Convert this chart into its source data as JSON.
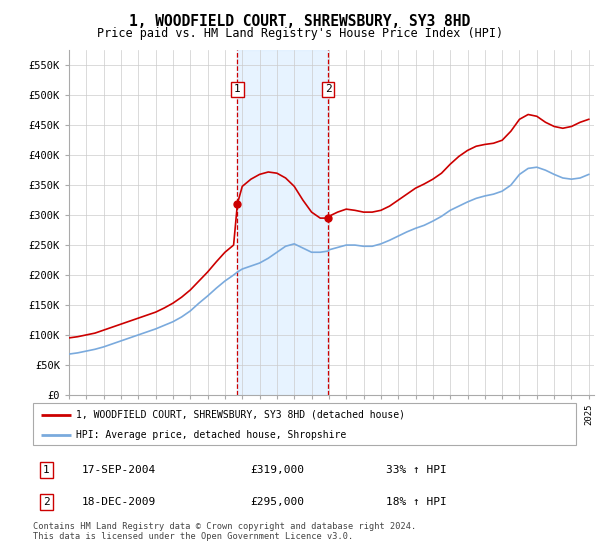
{
  "title": "1, WOODFIELD COURT, SHREWSBURY, SY3 8HD",
  "subtitle": "Price paid vs. HM Land Registry's House Price Index (HPI)",
  "ylim": [
    0,
    575000
  ],
  "yticks": [
    0,
    50000,
    100000,
    150000,
    200000,
    250000,
    300000,
    350000,
    400000,
    450000,
    500000,
    550000
  ],
  "ytick_labels": [
    "£0",
    "£50K",
    "£100K",
    "£150K",
    "£200K",
    "£250K",
    "£300K",
    "£350K",
    "£400K",
    "£450K",
    "£500K",
    "£550K"
  ],
  "red_line_color": "#cc0000",
  "blue_line_color": "#7aaadd",
  "grid_color": "#cccccc",
  "shade_color": "#ddeeff",
  "purchase1_date": 2004.72,
  "purchase1_price": 319000,
  "purchase2_date": 2009.96,
  "purchase2_price": 295000,
  "legend_entry1": "1, WOODFIELD COURT, SHREWSBURY, SY3 8HD (detached house)",
  "legend_entry2": "HPI: Average price, detached house, Shropshire",
  "table_row1_date": "17-SEP-2004",
  "table_row1_price": "£319,000",
  "table_row1_hpi": "33% ↑ HPI",
  "table_row2_date": "18-DEC-2009",
  "table_row2_price": "£295,000",
  "table_row2_hpi": "18% ↑ HPI",
  "footer": "Contains HM Land Registry data © Crown copyright and database right 2024.\nThis data is licensed under the Open Government Licence v3.0.",
  "hpi_x": [
    1995.0,
    1995.5,
    1996.0,
    1996.5,
    1997.0,
    1997.5,
    1998.0,
    1998.5,
    1999.0,
    1999.5,
    2000.0,
    2000.5,
    2001.0,
    2001.5,
    2002.0,
    2002.5,
    2003.0,
    2003.5,
    2004.0,
    2004.5,
    2004.72,
    2005.0,
    2005.5,
    2006.0,
    2006.5,
    2007.0,
    2007.5,
    2008.0,
    2008.5,
    2009.0,
    2009.5,
    2009.96,
    2010.0,
    2010.5,
    2011.0,
    2011.5,
    2012.0,
    2012.5,
    2013.0,
    2013.5,
    2014.0,
    2014.5,
    2015.0,
    2015.5,
    2016.0,
    2016.5,
    2017.0,
    2017.5,
    2018.0,
    2018.5,
    2019.0,
    2019.5,
    2020.0,
    2020.5,
    2021.0,
    2021.5,
    2022.0,
    2022.5,
    2023.0,
    2023.5,
    2024.0,
    2024.5,
    2025.0
  ],
  "hpi_y": [
    68000,
    70000,
    73000,
    76000,
    80000,
    85000,
    90000,
    95000,
    100000,
    105000,
    110000,
    116000,
    122000,
    130000,
    140000,
    153000,
    165000,
    178000,
    190000,
    200000,
    205000,
    210000,
    215000,
    220000,
    228000,
    238000,
    248000,
    252000,
    245000,
    238000,
    238000,
    240000,
    242000,
    246000,
    250000,
    250000,
    248000,
    248000,
    252000,
    258000,
    265000,
    272000,
    278000,
    283000,
    290000,
    298000,
    308000,
    315000,
    322000,
    328000,
    332000,
    335000,
    340000,
    350000,
    368000,
    378000,
    380000,
    375000,
    368000,
    362000,
    360000,
    362000,
    368000
  ],
  "red_x": [
    1995.0,
    1995.5,
    1996.0,
    1996.5,
    1997.0,
    1997.5,
    1998.0,
    1998.5,
    1999.0,
    1999.5,
    2000.0,
    2000.5,
    2001.0,
    2001.5,
    2002.0,
    2002.5,
    2003.0,
    2003.5,
    2004.0,
    2004.5,
    2004.72,
    2005.0,
    2005.5,
    2006.0,
    2006.5,
    2007.0,
    2007.5,
    2008.0,
    2008.5,
    2009.0,
    2009.5,
    2009.96,
    2010.0,
    2010.5,
    2011.0,
    2011.5,
    2012.0,
    2012.5,
    2013.0,
    2013.5,
    2014.0,
    2014.5,
    2015.0,
    2015.5,
    2016.0,
    2016.5,
    2017.0,
    2017.5,
    2018.0,
    2018.5,
    2019.0,
    2019.5,
    2020.0,
    2020.5,
    2021.0,
    2021.5,
    2022.0,
    2022.5,
    2023.0,
    2023.5,
    2024.0,
    2024.5,
    2025.0
  ],
  "red_y": [
    95000,
    97000,
    100000,
    103000,
    108000,
    113000,
    118000,
    123000,
    128000,
    133000,
    138000,
    145000,
    153000,
    163000,
    175000,
    190000,
    205000,
    222000,
    238000,
    250000,
    319000,
    348000,
    360000,
    368000,
    372000,
    370000,
    362000,
    348000,
    325000,
    305000,
    295000,
    295000,
    298000,
    305000,
    310000,
    308000,
    305000,
    305000,
    308000,
    315000,
    325000,
    335000,
    345000,
    352000,
    360000,
    370000,
    385000,
    398000,
    408000,
    415000,
    418000,
    420000,
    425000,
    440000,
    460000,
    468000,
    465000,
    455000,
    448000,
    445000,
    448000,
    455000,
    460000
  ]
}
